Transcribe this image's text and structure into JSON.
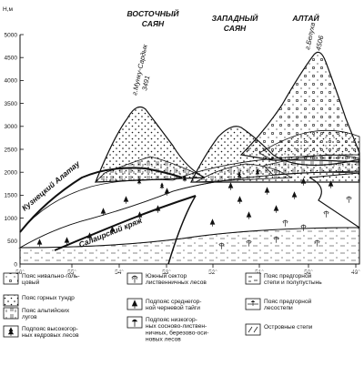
{
  "axis": {
    "y_unit": "Н,м",
    "y_ticks": [
      "5000",
      "4500",
      "4000",
      "3500",
      "3000",
      "2500",
      "2000",
      "1500",
      "1000",
      "500",
      "0"
    ],
    "x_ticks": [
      "56°",
      "55°",
      "54°",
      "53°",
      "52°",
      "51°",
      "50°",
      "49°"
    ]
  },
  "regions": {
    "east_sayan": [
      "ВОСТОЧНЫЙ",
      "САЯН"
    ],
    "west_sayan": [
      "ЗАПАДНЫЙ",
      "САЯН"
    ],
    "altai": "АЛТАЙ"
  },
  "peaks": {
    "munku": [
      "г.Мунку-Сардык",
      "3491"
    ],
    "belukha": [
      "г.Белуха",
      "4506"
    ]
  },
  "ranges": {
    "kuznetsky": "Кузнецкий Алатау",
    "salair": "Салаирский кряж"
  },
  "legend": {
    "col1": [
      {
        "symbol": "dots-circle",
        "text": [
          "Пояс нивально-голь-",
          "цовый"
        ]
      },
      {
        "symbol": "dots",
        "text": [
          "Пояс горных тундр"
        ]
      },
      {
        "symbol": "bars",
        "text": [
          "Пояс альпийских",
          "лугов"
        ]
      },
      {
        "symbol": "cedar",
        "text": [
          "Подпояс высокогор-",
          "ных кедровых лесов"
        ]
      }
    ],
    "col2": [
      {
        "symbol": "larch",
        "text": [
          "Южный сектор",
          "лиственничных лесов"
        ]
      },
      {
        "symbol": "fir",
        "text": [
          "Подпояс среднегор-",
          "ной черневой тайги"
        ]
      },
      {
        "symbol": "pine",
        "text": [
          "Подпояс низкогор-",
          "ных сосново-листвен-",
          "ничных, березово-оси-",
          "новых лесов"
        ]
      }
    ],
    "col3": [
      {
        "symbol": "steppe",
        "text": [
          "Пояс предгорной",
          "степи и полупустынь"
        ]
      },
      {
        "symbol": "forest-steppe",
        "text": [
          "Пояс предгорной",
          "лесостепи"
        ]
      },
      {
        "symbol": "island",
        "text": [
          "Островные степи"
        ]
      }
    ]
  }
}
